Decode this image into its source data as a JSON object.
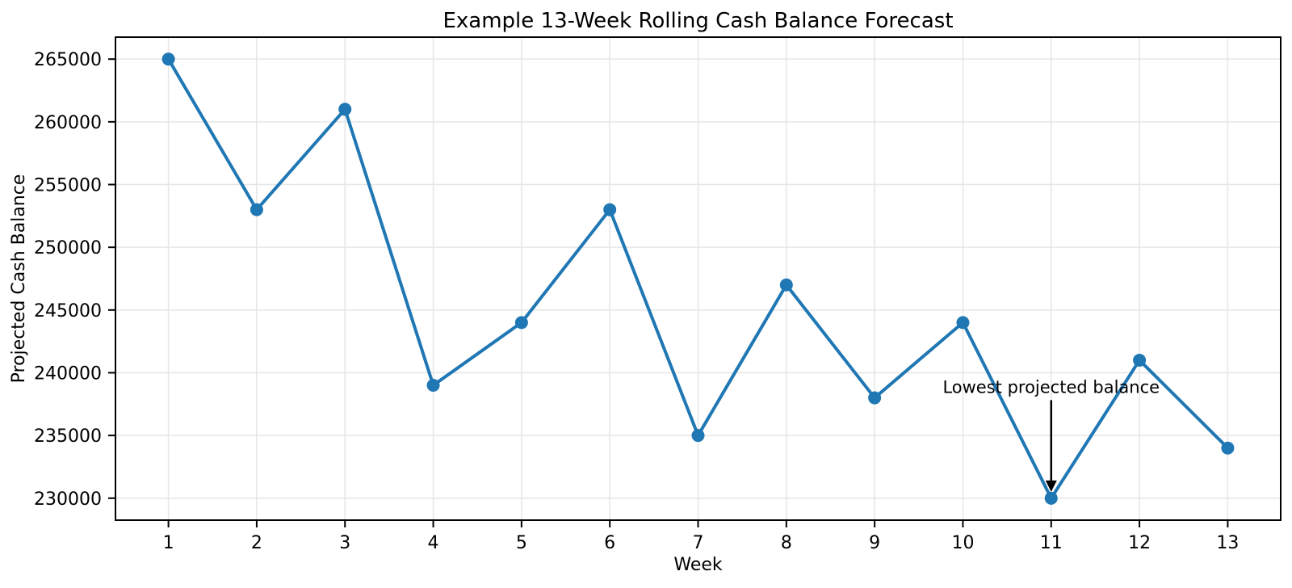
{
  "chart_data": {
    "type": "line",
    "title": "Example 13-Week Rolling Cash Balance Forecast",
    "xlabel": "Week",
    "ylabel": "Projected Cash Balance",
    "series": [
      {
        "name": "Projected Cash Balance",
        "x": [
          1,
          2,
          3,
          4,
          5,
          6,
          7,
          8,
          9,
          10,
          11,
          12,
          13
        ],
        "y": [
          265000,
          253000,
          261000,
          239000,
          244000,
          253000,
          235000,
          247000,
          238000,
          244000,
          230000,
          241000,
          234000
        ]
      }
    ],
    "xticks": [
      1,
      2,
      3,
      4,
      5,
      6,
      7,
      8,
      9,
      10,
      11,
      12,
      13
    ],
    "yticks": [
      230000,
      235000,
      240000,
      245000,
      250000,
      255000,
      260000,
      265000
    ],
    "xlim": [
      0.4,
      13.6
    ],
    "ylim": [
      228250,
      266750
    ],
    "grid": true,
    "legend": "none",
    "line_color": "#1f77b4",
    "marker_color": "#1f77b4",
    "marker": "o",
    "grid_color": "#e6e6e6",
    "axis_color": "#000000",
    "background_color": "#ffffff",
    "annotation": {
      "text": "Lowest projected balance",
      "target_x": 11,
      "target_y": 230000,
      "text_x": 11,
      "text_y": 238400,
      "arrow_color": "#000000"
    }
  }
}
